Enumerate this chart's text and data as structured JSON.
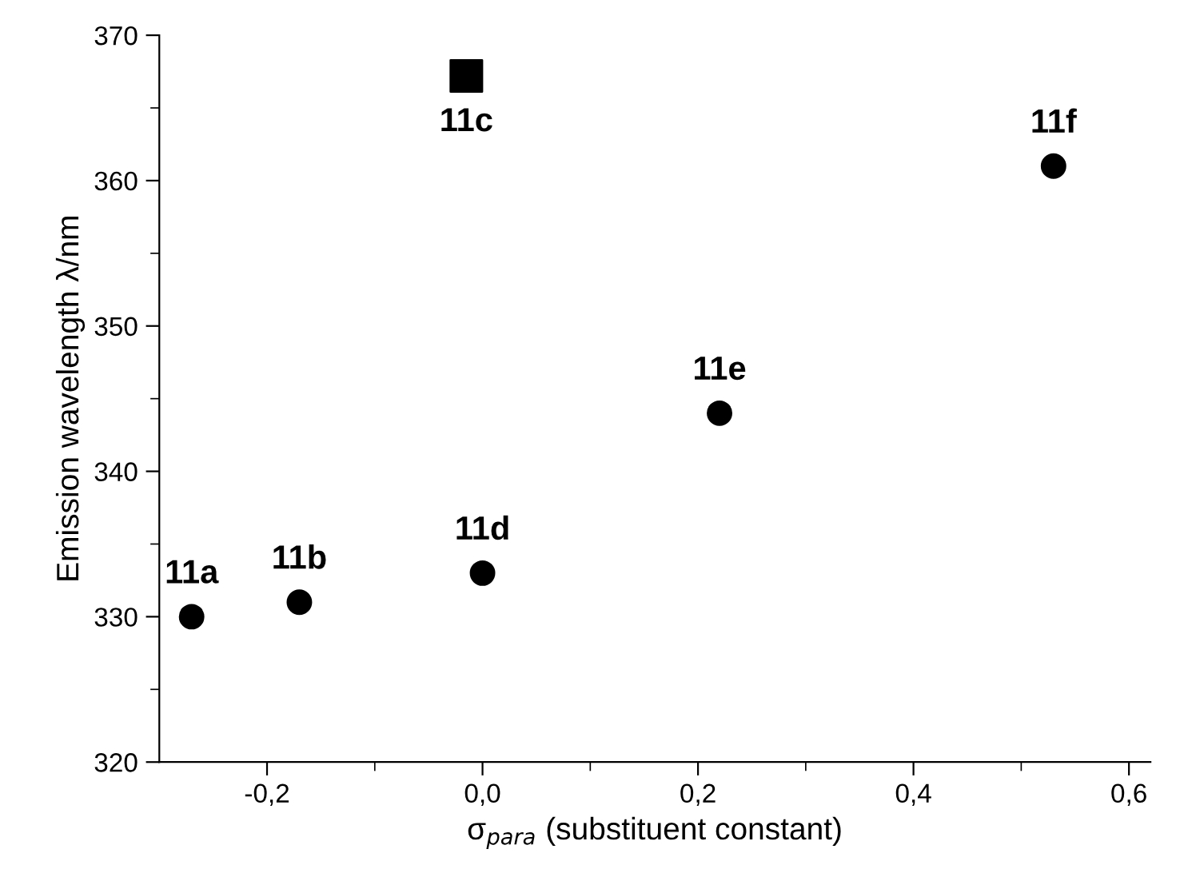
{
  "chart_data": {
    "type": "scatter",
    "xlabel": "σ$_{para}$ (substituent constant)",
    "ylabel": "Emission wavelength λ/nm",
    "series": [
      {
        "color": "#000000",
        "marker": "circle",
        "x": [
          -0.27,
          -0.17,
          0.0,
          0.22,
          0.53
        ],
        "values": [
          330,
          331,
          333,
          344,
          361
        ]
      },
      {
        "color": "#000000",
        "marker": "square",
        "x": [
          -0.015
        ],
        "values": [
          367.2
        ]
      }
    ],
    "annotations": [
      {
        "text": "11a",
        "x": -0.27,
        "y": 330
      },
      {
        "text": "11b",
        "x": -0.17,
        "y": 331
      },
      {
        "text": "11c",
        "x": -0.015,
        "y": 367.2
      },
      {
        "text": "11d",
        "x": 0.0,
        "y": 333
      },
      {
        "text": "11e",
        "x": 0.22,
        "y": 344
      },
      {
        "text": "11f",
        "x": 0.53,
        "y": 361
      }
    ],
    "xlim": [
      -0.3,
      0.62
    ],
    "ylim": [
      320,
      370
    ],
    "xticks": [
      {
        "value": -0.2,
        "label": "-0,2"
      },
      {
        "value": 0.0,
        "label": "0,0"
      },
      {
        "value": 0.2,
        "label": "0,2"
      },
      {
        "value": 0.4,
        "label": "0,4"
      },
      {
        "value": 0.6,
        "label": "0,6"
      }
    ],
    "yticks": [
      320,
      330,
      340,
      350,
      360,
      370
    ],
    "grid": false,
    "legend": false
  }
}
